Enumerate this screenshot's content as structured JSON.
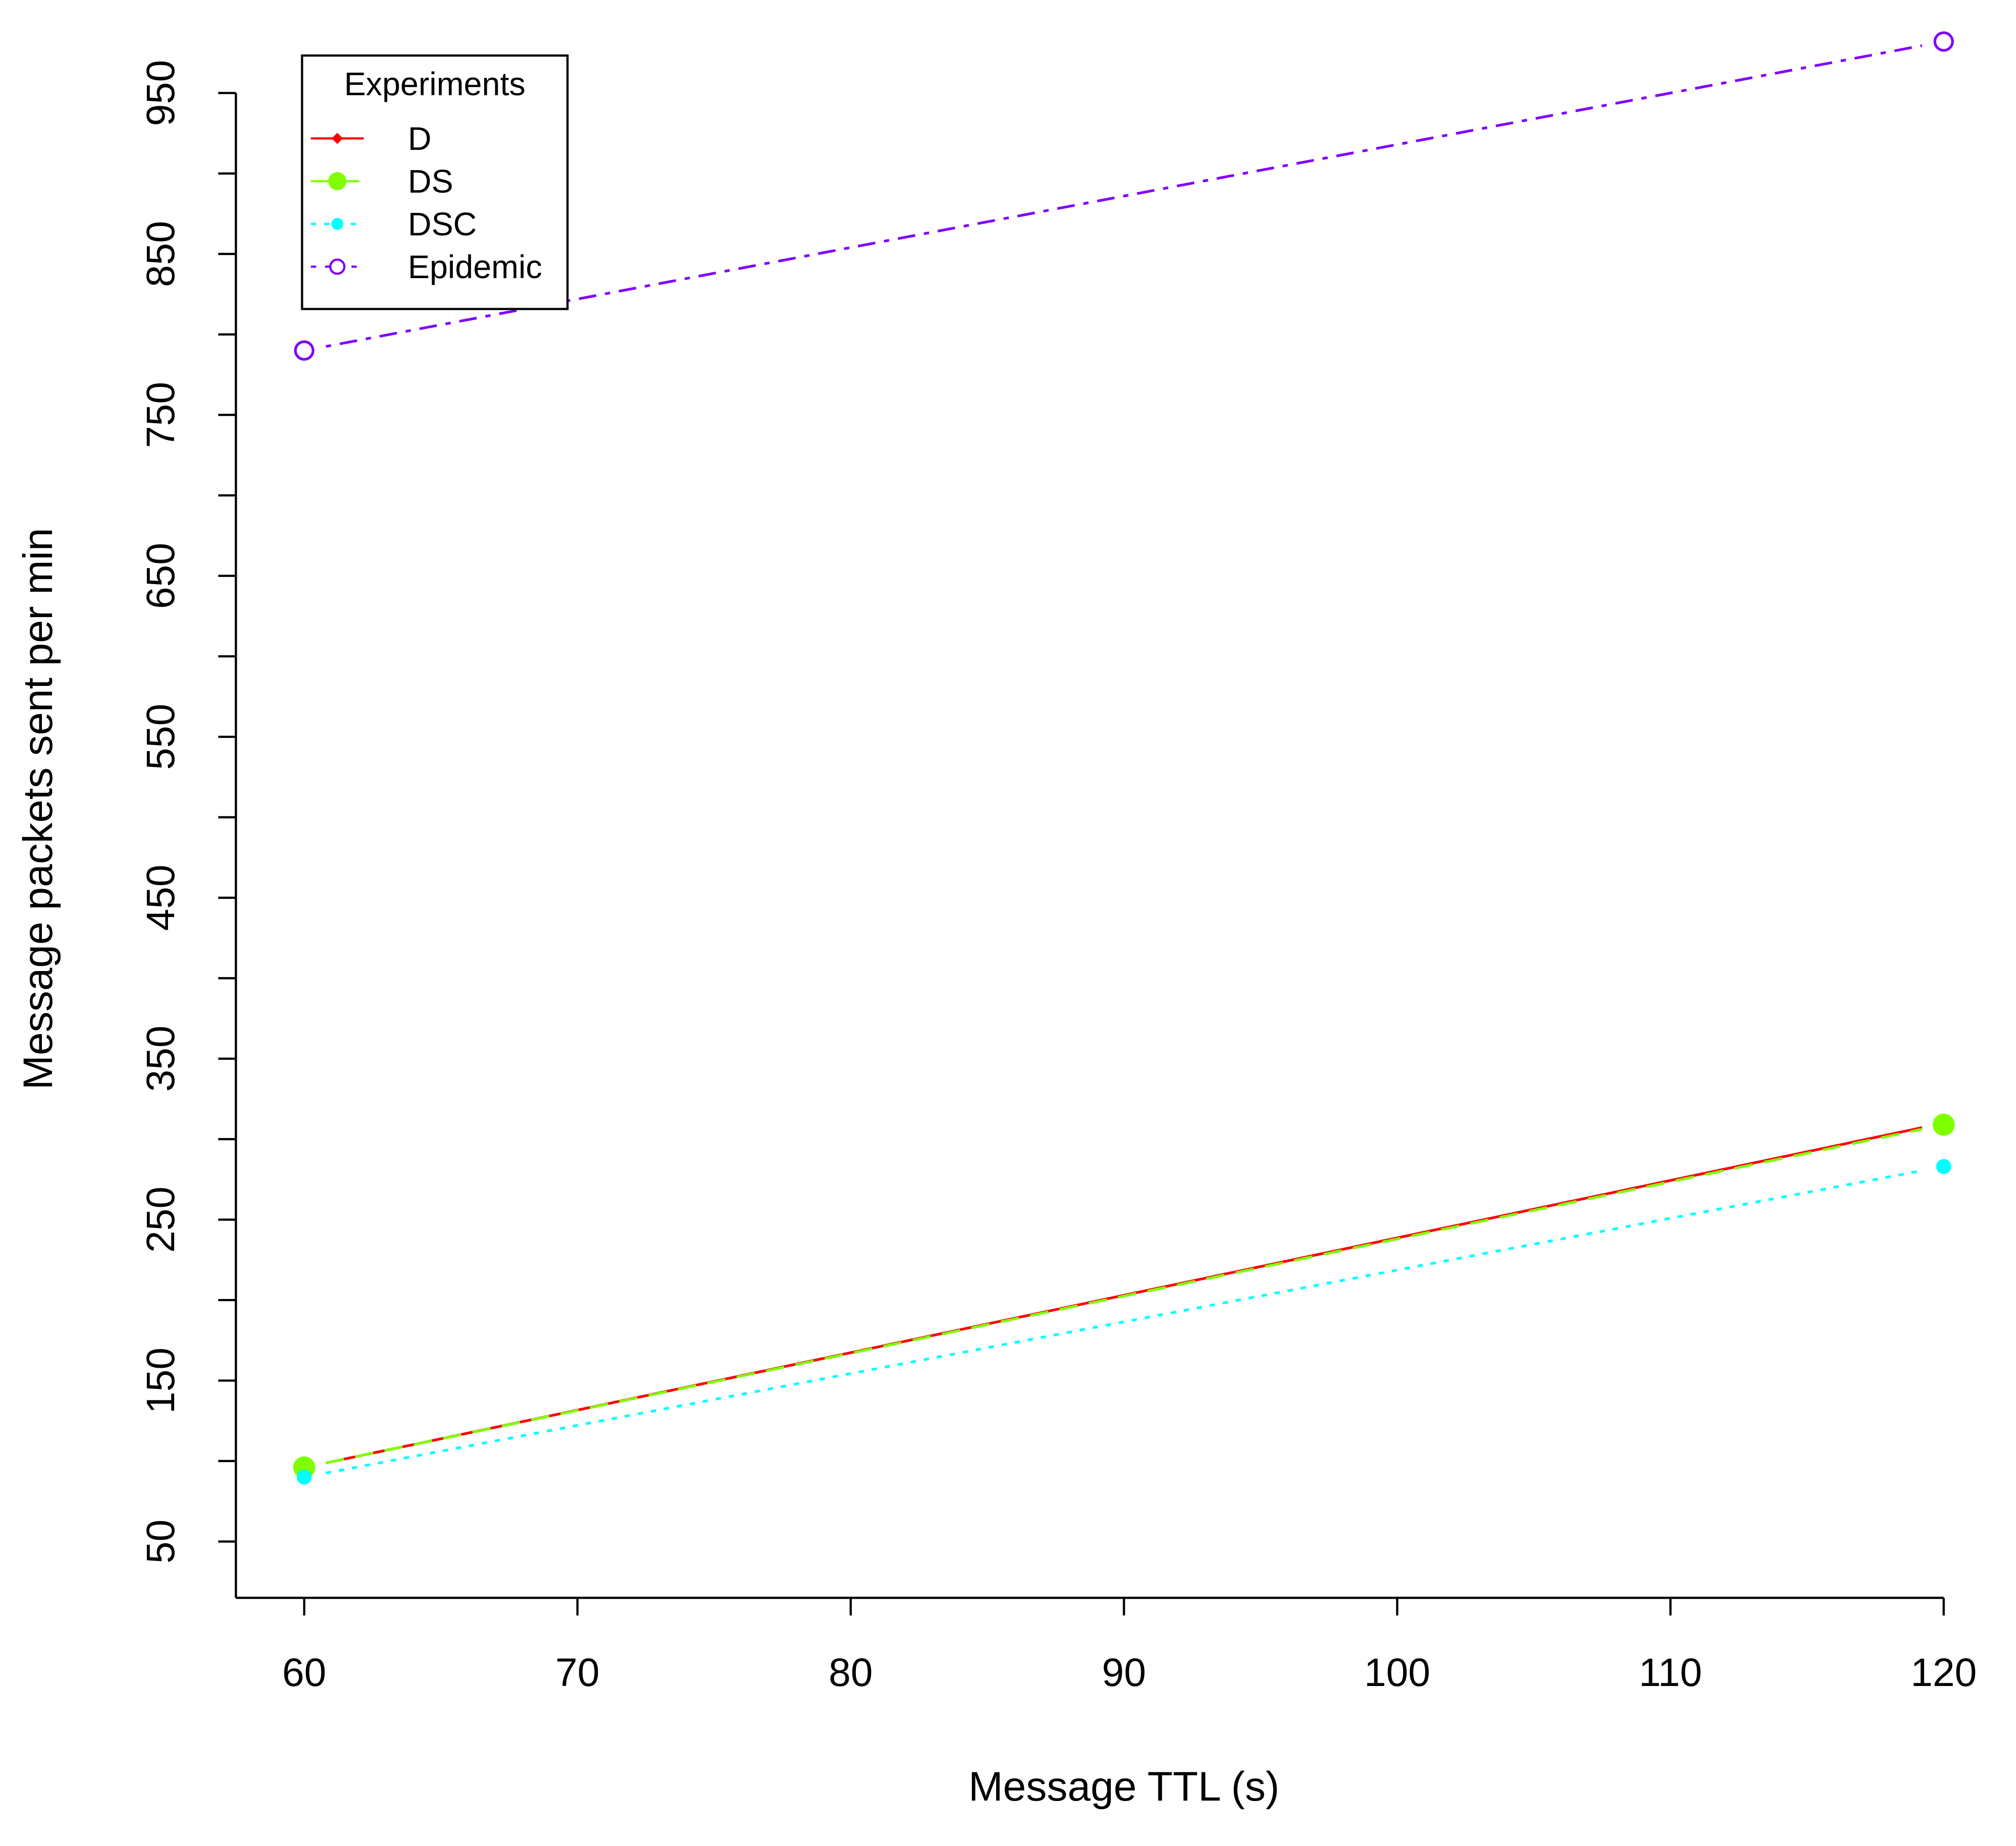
{
  "chart_data": {
    "type": "line",
    "xlabel": "Message TTL (s)",
    "ylabel": "Message packets sent per min",
    "x": [
      60,
      120
    ],
    "xlim": [
      57.5,
      121
    ],
    "ylim": [
      15,
      990
    ],
    "xticks": [
      60,
      70,
      80,
      90,
      100,
      110,
      120
    ],
    "yticks_major": [
      50,
      150,
      250,
      350,
      450,
      550,
      650,
      750,
      850,
      950
    ],
    "yticks_minor": [
      100,
      200,
      300,
      400,
      500,
      600,
      700,
      800,
      900
    ],
    "grid": false,
    "legend": {
      "title": "Experiments",
      "position": "top-left"
    },
    "series": [
      {
        "name": "D",
        "values": [
          96,
          310
        ],
        "color": "#ff0000",
        "dash": "solid",
        "marker": "diamond-filled"
      },
      {
        "name": "DS",
        "values": [
          96,
          309
        ],
        "color": "#80ff00",
        "dash": "dashed",
        "marker": "circle-filled-large"
      },
      {
        "name": "DSC",
        "values": [
          90,
          283
        ],
        "color": "#00ffff",
        "dash": "dotted",
        "marker": "circle-filled-small"
      },
      {
        "name": "Epidemic",
        "values": [
          790,
          982
        ],
        "color": "#8000ff",
        "dash": "dotdash",
        "marker": "circle-open"
      }
    ]
  }
}
